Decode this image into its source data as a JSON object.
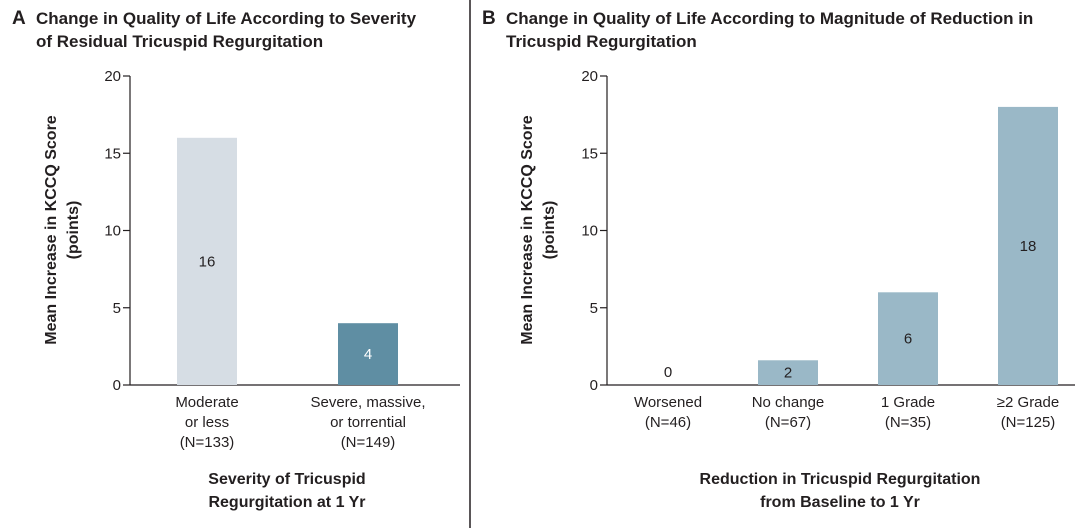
{
  "chart_data": [
    {
      "type": "bar",
      "panel": "A",
      "title": [
        "Change in Quality of Life According to Severity",
        "of Residual Tricuspid Regurgitation"
      ],
      "ylabel": [
        "Mean Increase in KCCQ Score",
        "(points)"
      ],
      "xlabel": [
        "Severity of Tricuspid",
        "Regurgitation at 1 Yr"
      ],
      "ylim": [
        0,
        20
      ],
      "yticks": [
        0,
        5,
        10,
        15,
        20
      ],
      "categories": [
        [
          "Moderate",
          "or less",
          "(N=133)"
        ],
        [
          "Severe, massive,",
          "or torrential",
          "(N=149)"
        ]
      ],
      "values": [
        16,
        4
      ],
      "data_labels": [
        "16",
        "4"
      ],
      "colors": [
        "#d6dde4",
        "#5f8ea3"
      ],
      "label_colors": [
        "#231f20",
        "#ffffff"
      ]
    },
    {
      "type": "bar",
      "panel": "B",
      "title": [
        "Change in Quality of Life According to Magnitude of Reduction in",
        "Tricuspid Regurgitation"
      ],
      "ylabel": [
        "Mean Increase in KCCQ Score",
        "(points)"
      ],
      "xlabel": [
        "Reduction in Tricuspid Regurgitation",
        "from Baseline to 1 Yr"
      ],
      "ylim": [
        0,
        20
      ],
      "yticks": [
        0,
        5,
        10,
        15,
        20
      ],
      "categories": [
        [
          "Worsened",
          "(N=46)"
        ],
        [
          "No change",
          "(N=67)"
        ],
        [
          "1 Grade",
          "(N=35)"
        ],
        [
          "≥2 Grade",
          "(N=125)"
        ]
      ],
      "values": [
        0,
        1.6,
        6,
        18
      ],
      "data_labels": [
        "0",
        "2",
        "6",
        "18"
      ],
      "colors": [
        "#9ab8c7",
        "#9ab8c7",
        "#9ab8c7",
        "#9ab8c7"
      ],
      "label_colors": [
        "#231f20",
        "#231f20",
        "#231f20",
        "#231f20"
      ]
    }
  ]
}
